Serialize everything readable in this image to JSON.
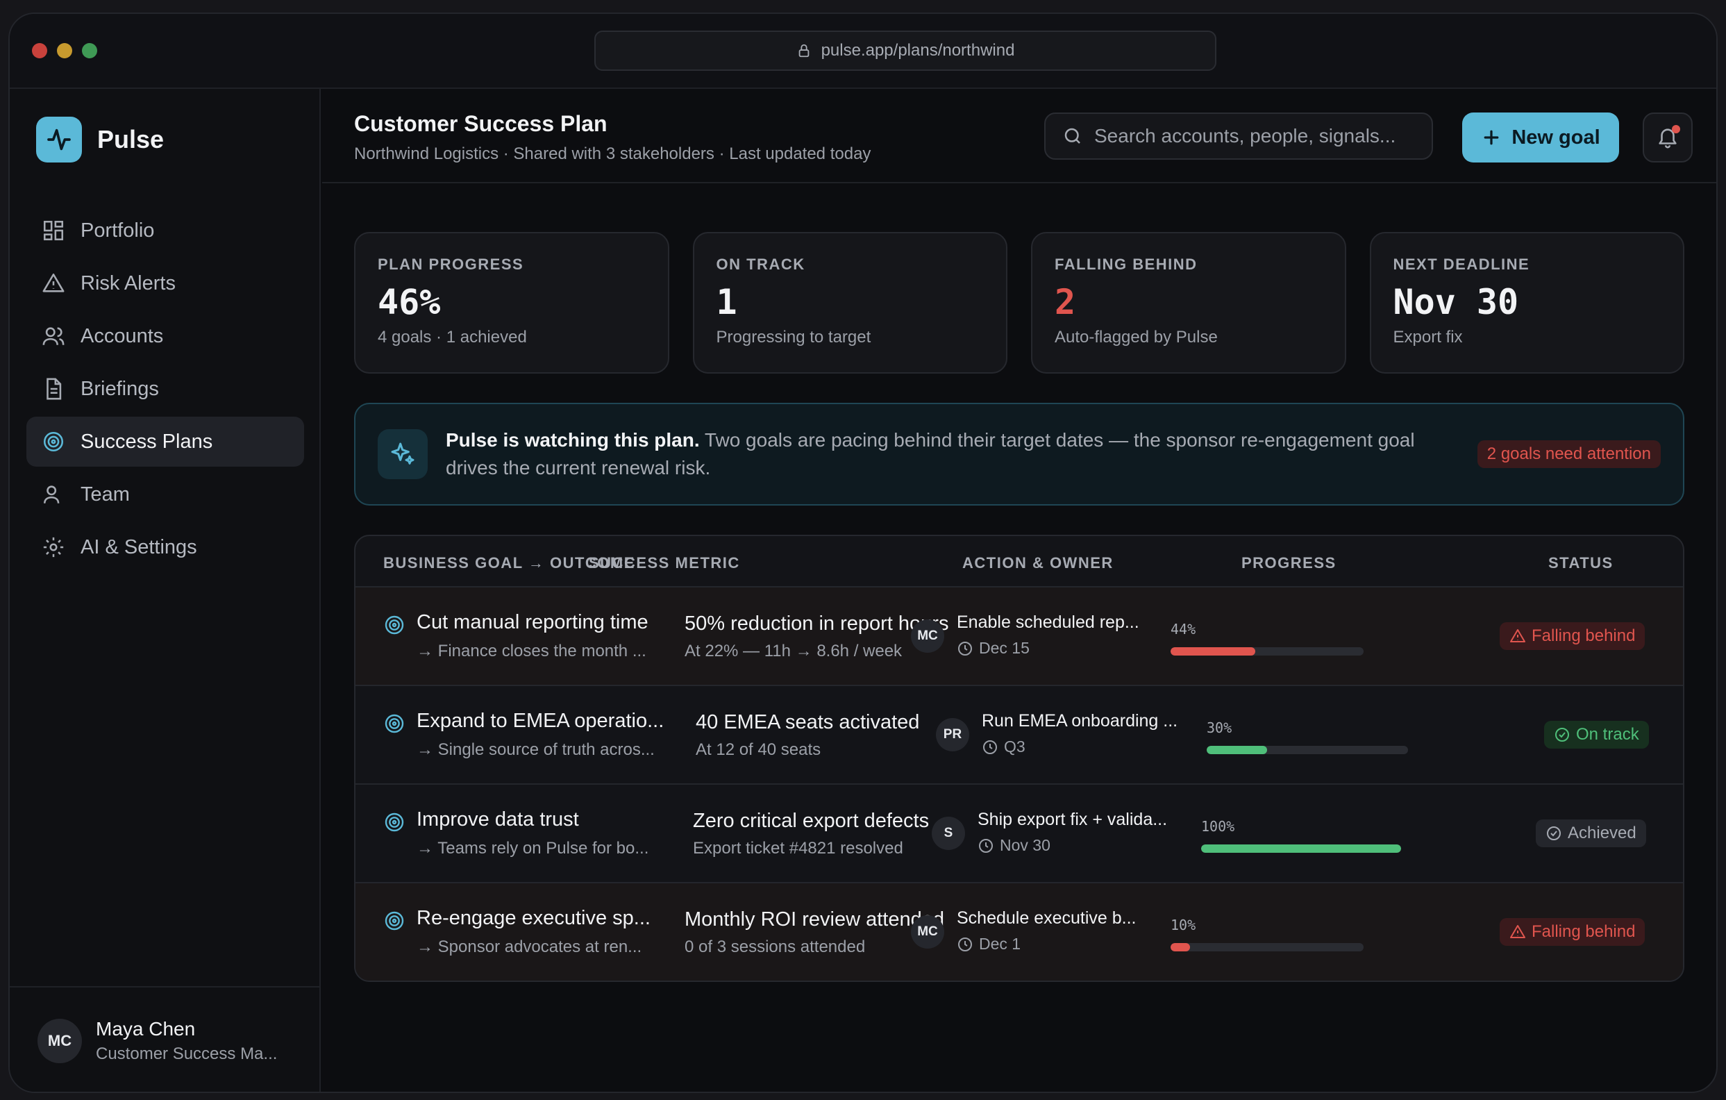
{
  "browser": {
    "url": "pulse.app/plans/northwind"
  },
  "brand": {
    "name": "Pulse",
    "accent": "#5bb9d8"
  },
  "sidebar": {
    "items": [
      {
        "label": "Portfolio",
        "icon": "grid-icon"
      },
      {
        "label": "Risk Alerts",
        "icon": "warning-icon"
      },
      {
        "label": "Accounts",
        "icon": "users-icon"
      },
      {
        "label": "Briefings",
        "icon": "document-icon"
      },
      {
        "label": "Success Plans",
        "icon": "target-icon",
        "active": true
      },
      {
        "label": "Team",
        "icon": "user-icon"
      },
      {
        "label": "AI & Settings",
        "icon": "gear-icon"
      }
    ],
    "user": {
      "initials": "MC",
      "name": "Maya Chen",
      "role": "Customer Success Ma..."
    }
  },
  "header": {
    "title": "Customer Success Plan",
    "subtitle": "Northwind Logistics · Shared with 3 stakeholders · Last updated today",
    "search_placeholder": "Search accounts, people, signals...",
    "new_goal_label": "New goal"
  },
  "stats": [
    {
      "label": "PLAN PROGRESS",
      "value": "46%",
      "sub": "4 goals · 1 achieved"
    },
    {
      "label": "ON TRACK",
      "value": "1",
      "sub": "Progressing to target"
    },
    {
      "label": "FALLING BEHIND",
      "value": "2",
      "sub": "Auto-flagged by Pulse",
      "color": "#e0554e"
    },
    {
      "label": "NEXT DEADLINE",
      "value": "Nov 30",
      "sub": "Export fix"
    }
  ],
  "insight": {
    "lead": "Pulse is watching this plan.",
    "body": "Two goals are pacing behind their target dates — the sponsor re-engagement goal drives the current renewal risk.",
    "badge": "2 goals need attention"
  },
  "table": {
    "headers": [
      "BUSINESS GOAL → OUTCOME",
      "SUCCESS METRIC",
      "ACTION & OWNER",
      "PROGRESS",
      "STATUS"
    ],
    "rows": [
      {
        "goal": "Cut manual reporting time",
        "outcome": "→ Finance closes the month ...",
        "metric": "50% reduction in report hours",
        "metric_sub": "At 22% — 11h → 8.6h / week",
        "owner": "MC",
        "action": "Enable scheduled rep...",
        "due": "Dec 15",
        "progress_label": "44%",
        "progress": 0.44,
        "status": "Falling behind"
      },
      {
        "goal": "Expand to EMEA operatio...",
        "outcome": "→ Single source of truth acros...",
        "metric": "40 EMEA seats activated",
        "metric_sub": "At 12 of 40 seats",
        "owner": "PR",
        "action": "Run EMEA onboarding ...",
        "due": "Q3",
        "progress_label": "30%",
        "progress": 0.3,
        "status": "On track"
      },
      {
        "goal": "Improve data trust",
        "outcome": "→ Teams rely on Pulse for bo...",
        "metric": "Zero critical export defects",
        "metric_sub": "Export ticket #4821 resolved",
        "owner": "S",
        "action": "Ship export fix + valida...",
        "due": "Nov 30",
        "progress_label": "100%",
        "progress": 1.0,
        "status": "Achieved"
      },
      {
        "goal": "Re-engage executive sp...",
        "outcome": "→ Sponsor advocates at ren...",
        "metric": "Monthly ROI review attended",
        "metric_sub": "0 of 3 sessions attended",
        "owner": "MC",
        "action": "Schedule executive b...",
        "due": "Dec 1",
        "progress_label": "10%",
        "progress": 0.1,
        "status": "Falling behind"
      }
    ]
  }
}
